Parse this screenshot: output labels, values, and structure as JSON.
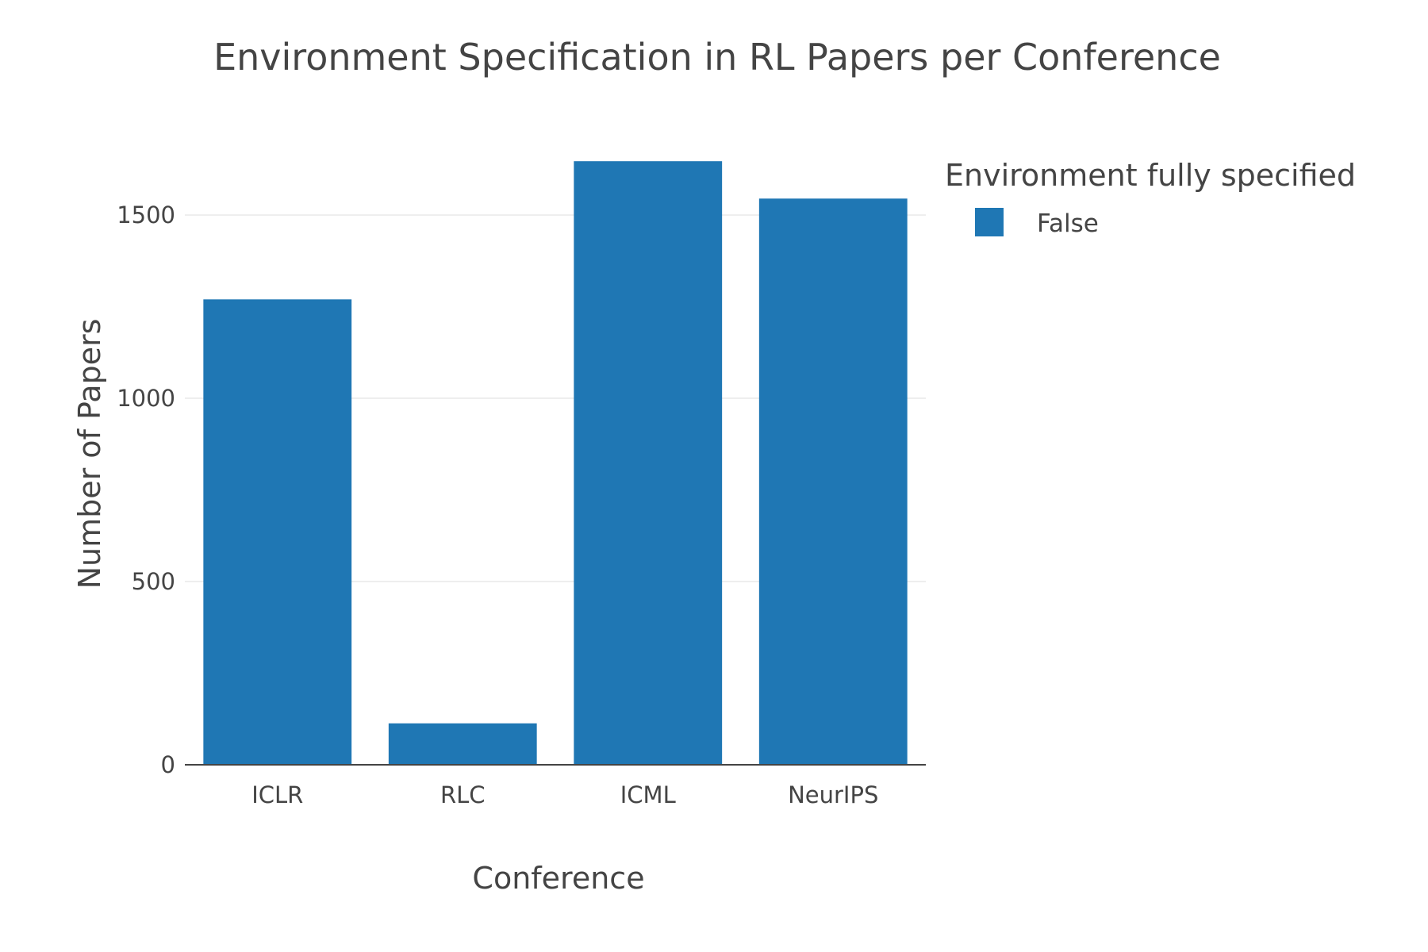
{
  "chart_data": {
    "type": "bar",
    "title": "Environment Specification in RL Papers per Conference",
    "xlabel": "Conference",
    "ylabel": "Number of Papers",
    "categories": [
      "ICLR",
      "RLC",
      "ICML",
      "NeurIPS"
    ],
    "series": [
      {
        "name": "False",
        "values": [
          1270,
          113,
          1647,
          1545
        ],
        "color": "#1f77b4"
      }
    ],
    "ylim": [
      0,
      1734
    ],
    "yticks": [
      0,
      500,
      1000,
      1500
    ],
    "grid": true,
    "legend": {
      "title": "Environment fully specified",
      "placement": "top-right"
    }
  }
}
